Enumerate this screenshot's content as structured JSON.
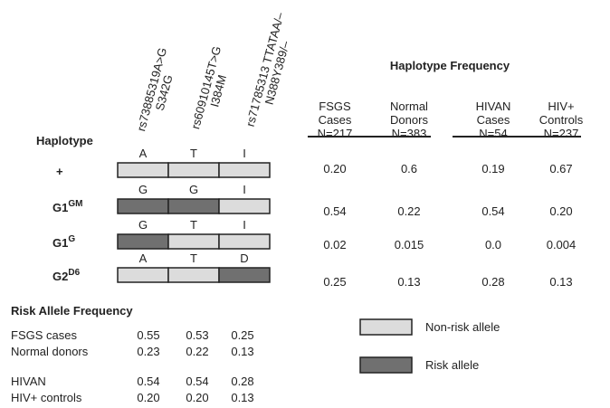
{
  "snps": [
    {
      "id": "rs73885319A>G",
      "change": "S342G"
    },
    {
      "id": "rs60910145T>G",
      "change": "I384M"
    },
    {
      "id": "rs71785313 TTATAA/–",
      "change": "N388Y389/–"
    }
  ],
  "haplotype_label": "Haplotype",
  "haplotypes": [
    {
      "name": "+",
      "alleles": [
        "A",
        "T",
        "I"
      ],
      "risk": [
        false,
        false,
        false
      ]
    },
    {
      "name": "G1",
      "superscript": "GM",
      "alleles": [
        "G",
        "G",
        "I"
      ],
      "risk": [
        true,
        true,
        false
      ]
    },
    {
      "name": "G1",
      "superscript": "G",
      "alleles": [
        "G",
        "T",
        "I"
      ],
      "risk": [
        true,
        false,
        false
      ]
    },
    {
      "name": "G2",
      "superscript": "D6",
      "alleles": [
        "A",
        "T",
        "D"
      ],
      "risk": [
        false,
        false,
        true
      ]
    }
  ],
  "haplotype_frequency": {
    "title": "Haplotype Frequency",
    "columns": [
      [
        "FSGS",
        "Cases",
        "N=217"
      ],
      [
        "Normal",
        "Donors",
        "N=383"
      ],
      [
        "HIVAN",
        "Cases",
        "N=54"
      ],
      [
        "HIV+",
        "Controls",
        "N=237"
      ]
    ],
    "rows": [
      [
        "0.20",
        "0.6",
        "0.19",
        "0.67"
      ],
      [
        "0.54",
        "0.22",
        "0.54",
        "0.20"
      ],
      [
        "0.02",
        "0.015",
        "0.0",
        "0.004"
      ],
      [
        "0.25",
        "0.13",
        "0.28",
        "0.13"
      ]
    ]
  },
  "risk_allele_frequency": {
    "title": "Risk Allele Frequency",
    "rows": [
      {
        "label": "FSGS cases",
        "values": [
          "0.55",
          "0.53",
          "0.25"
        ]
      },
      {
        "label": "Normal donors",
        "values": [
          "0.23",
          "0.22",
          "0.13"
        ]
      },
      {
        "label": "HIVAN",
        "values": [
          "0.54",
          "0.54",
          "0.28"
        ]
      },
      {
        "label": "HIV+ controls",
        "values": [
          "0.20",
          "0.20",
          "0.13"
        ]
      }
    ]
  },
  "legend": [
    {
      "label": "Non-risk allele",
      "risk": false
    },
    {
      "label": "Risk allele",
      "risk": true
    }
  ]
}
